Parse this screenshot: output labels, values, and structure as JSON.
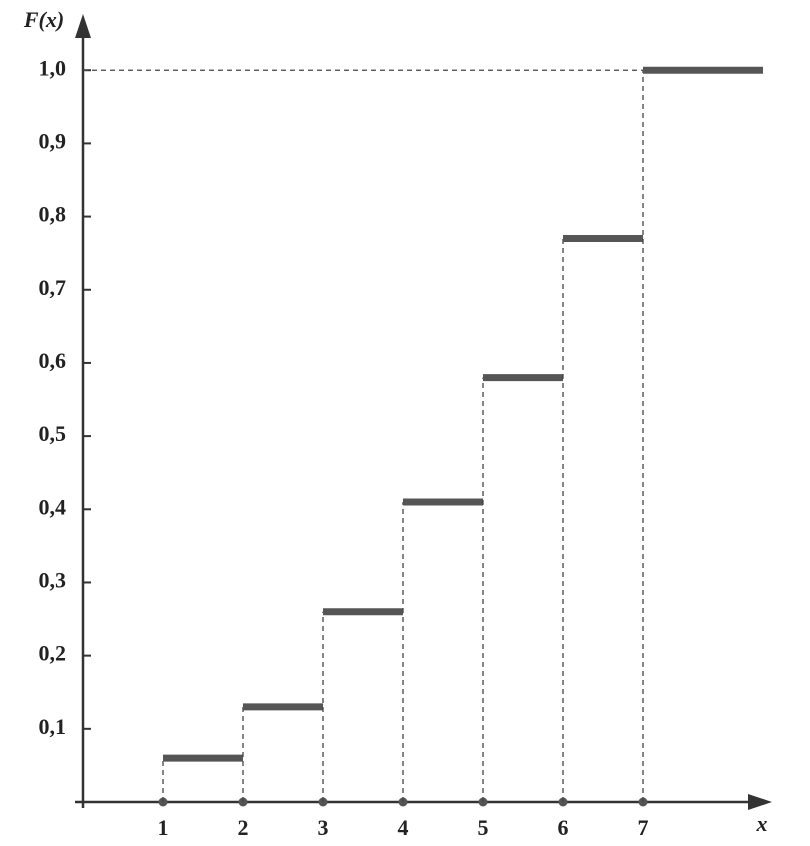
{
  "chart_data": {
    "type": "step",
    "xlabel": "x",
    "ylabel": "F(x)",
    "segments": [
      {
        "x0": 1,
        "x1": 2,
        "value": 0.06
      },
      {
        "x0": 2,
        "x1": 3,
        "value": 0.13
      },
      {
        "x0": 3,
        "x1": 4,
        "value": 0.26
      },
      {
        "x0": 4,
        "x1": 5,
        "value": 0.41
      },
      {
        "x0": 5,
        "x1": 6,
        "value": 0.58
      },
      {
        "x0": 6,
        "x1": 7,
        "value": 0.77
      },
      {
        "x0": 7,
        "x1": 8.5,
        "value": 1.0
      }
    ],
    "color": "#555555",
    "xlim": [
      0,
      8.5
    ],
    "ylim": [
      0,
      1.07
    ],
    "xticks": [
      1,
      2,
      3,
      4,
      5,
      6,
      7
    ],
    "yticks": [
      {
        "value": 0.1,
        "label": "0,1"
      },
      {
        "value": 0.2,
        "label": "0,2"
      },
      {
        "value": 0.3,
        "label": "0,3"
      },
      {
        "value": 0.4,
        "label": "0,4"
      },
      {
        "value": 0.5,
        "label": "0,5"
      },
      {
        "value": 0.6,
        "label": "0,6"
      },
      {
        "value": 0.7,
        "label": "0,7"
      },
      {
        "value": 0.8,
        "label": "0,8"
      },
      {
        "value": 0.9,
        "label": "0,9"
      },
      {
        "value": 1.0,
        "label": "1,0"
      }
    ]
  }
}
